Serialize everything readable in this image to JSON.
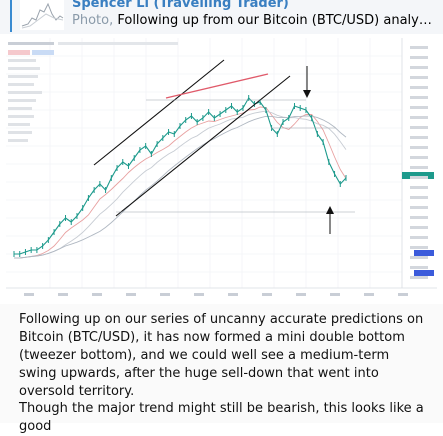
{
  "reply": {
    "author": "Spencer Li (Travelling Trader)",
    "kind": "Photo,",
    "preview": " Following up from our Bitcoin (BTC/USD) analysis j…",
    "accent_color": "#3a8bd1"
  },
  "message": {
    "paragraph_1": "Following up on our series of uncanny accurate predictions on Bitcoin (BTC/USD), it has now formed a mini double bottom (tweezer bottom), and we could well see a medium-term swing upwards, after the huge sell-down that went into oversold territory.",
    "paragraph_2": "Though the major trend might still be bearish, this looks like a good"
  },
  "chart_data": {
    "type": "line",
    "series": [
      {
        "values": [
          12,
          12,
          13,
          14,
          14,
          16,
          19,
          23,
          27,
          30,
          28,
          31,
          35,
          40,
          44,
          47,
          44,
          50,
          55,
          58,
          56,
          60,
          64,
          66,
          62,
          67,
          70,
          73,
          72,
          76,
          79,
          81,
          78,
          80,
          83,
          80,
          82,
          84,
          86,
          83,
          85,
          90,
          87,
          88,
          84,
          75,
          72,
          78,
          80,
          86,
          85,
          84,
          80,
          72,
          68,
          58,
          52,
          47,
          50
        ]
      }
    ],
    "colors": {
      "price_line": "#1d9a8c",
      "fast_ma": "#e8a0a0",
      "mid_ma": "#c7ccd3",
      "slow_ma": "#b0b8c2",
      "trendline": "#111111",
      "resistance_line": "#e05a6a",
      "current_price_tag": "#1d9a8c",
      "level_tag": "#3b5bdb"
    },
    "grid": true,
    "legend": "top-left"
  }
}
